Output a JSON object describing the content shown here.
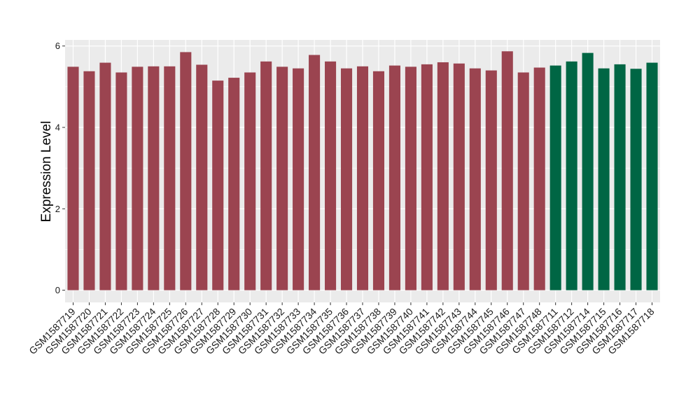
{
  "chart_data": {
    "type": "bar",
    "title": "",
    "xlabel": "",
    "ylabel": "Expression Level",
    "ylim": [
      -0.3,
      6.15
    ],
    "yticks": [
      0,
      2,
      4,
      6
    ],
    "grid": true,
    "legend": "none",
    "colors": {
      "group_a": "#9b4450",
      "group_b": "#006644",
      "panel": "#ebebeb",
      "grid": "#ffffff"
    },
    "categories": [
      "GSM1587719",
      "GSM1587720",
      "GSM1587721",
      "GSM1587722",
      "GSM1587723",
      "GSM1587724",
      "GSM1587725",
      "GSM1587726",
      "GSM1587727",
      "GSM1587728",
      "GSM1587729",
      "GSM1587730",
      "GSM1587731",
      "GSM1587732",
      "GSM1587733",
      "GSM1587734",
      "GSM1587735",
      "GSM1587736",
      "GSM1587737",
      "GSM1587738",
      "GSM1587739",
      "GSM1587740",
      "GSM1587741",
      "GSM1587742",
      "GSM1587743",
      "GSM1587744",
      "GSM1587745",
      "GSM1587746",
      "GSM1587747",
      "GSM1587748",
      "GSM1587711",
      "GSM1587712",
      "GSM1587714",
      "GSM1587715",
      "GSM1587716",
      "GSM1587717",
      "GSM1587718"
    ],
    "values": [
      5.49,
      5.38,
      5.59,
      5.35,
      5.49,
      5.5,
      5.5,
      5.85,
      5.54,
      5.15,
      5.22,
      5.35,
      5.62,
      5.49,
      5.45,
      5.78,
      5.62,
      5.45,
      5.5,
      5.38,
      5.52,
      5.49,
      5.55,
      5.6,
      5.57,
      5.45,
      5.4,
      5.87,
      5.35,
      5.47,
      5.52,
      5.62,
      5.83,
      5.45,
      5.55,
      5.44,
      5.59
    ],
    "groups": [
      "a",
      "a",
      "a",
      "a",
      "a",
      "a",
      "a",
      "a",
      "a",
      "a",
      "a",
      "a",
      "a",
      "a",
      "a",
      "a",
      "a",
      "a",
      "a",
      "a",
      "a",
      "a",
      "a",
      "a",
      "a",
      "a",
      "a",
      "a",
      "a",
      "a",
      "b",
      "b",
      "b",
      "b",
      "b",
      "b",
      "b"
    ]
  }
}
